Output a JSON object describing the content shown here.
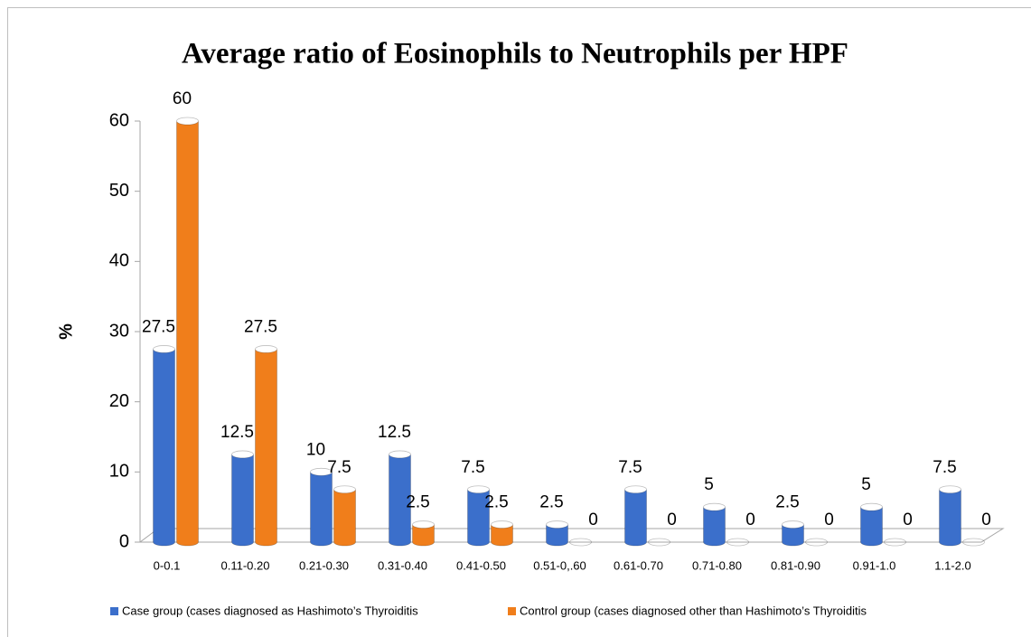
{
  "chart_data": {
    "type": "bar",
    "title": "Average ratio of Eosinophils to Neutrophils per HPF",
    "y_label": "%",
    "categories": [
      "0-0.1",
      "0.11-0.20",
      "0.21-0.30",
      "0.31-0.40",
      "0.41-0.50",
      "0.51-0,.60",
      "0.61-0.70",
      "0.71-0.80",
      "0.81-0.90",
      "0.91-1.0",
      "1.1-2.0"
    ],
    "series": [
      {
        "name": "Case group (cases diagnosed as Hashimoto’s Thyroiditis",
        "color": "#3b6fcb",
        "values": [
          27.5,
          12.5,
          10,
          12.5,
          7.5,
          2.5,
          7.5,
          5,
          2.5,
          5,
          7.5
        ]
      },
      {
        "name": "Control group (cases diagnosed other than Hashimoto’s Thyroiditis",
        "color": "#f07e1b",
        "values": [
          60,
          27.5,
          7.5,
          2.5,
          2.5,
          0,
          0,
          0,
          0,
          0,
          0
        ]
      }
    ],
    "ylim": [
      0,
      60
    ],
    "yticks": [
      0,
      10,
      20,
      30,
      40,
      50,
      60
    ],
    "legend": "bottom"
  }
}
